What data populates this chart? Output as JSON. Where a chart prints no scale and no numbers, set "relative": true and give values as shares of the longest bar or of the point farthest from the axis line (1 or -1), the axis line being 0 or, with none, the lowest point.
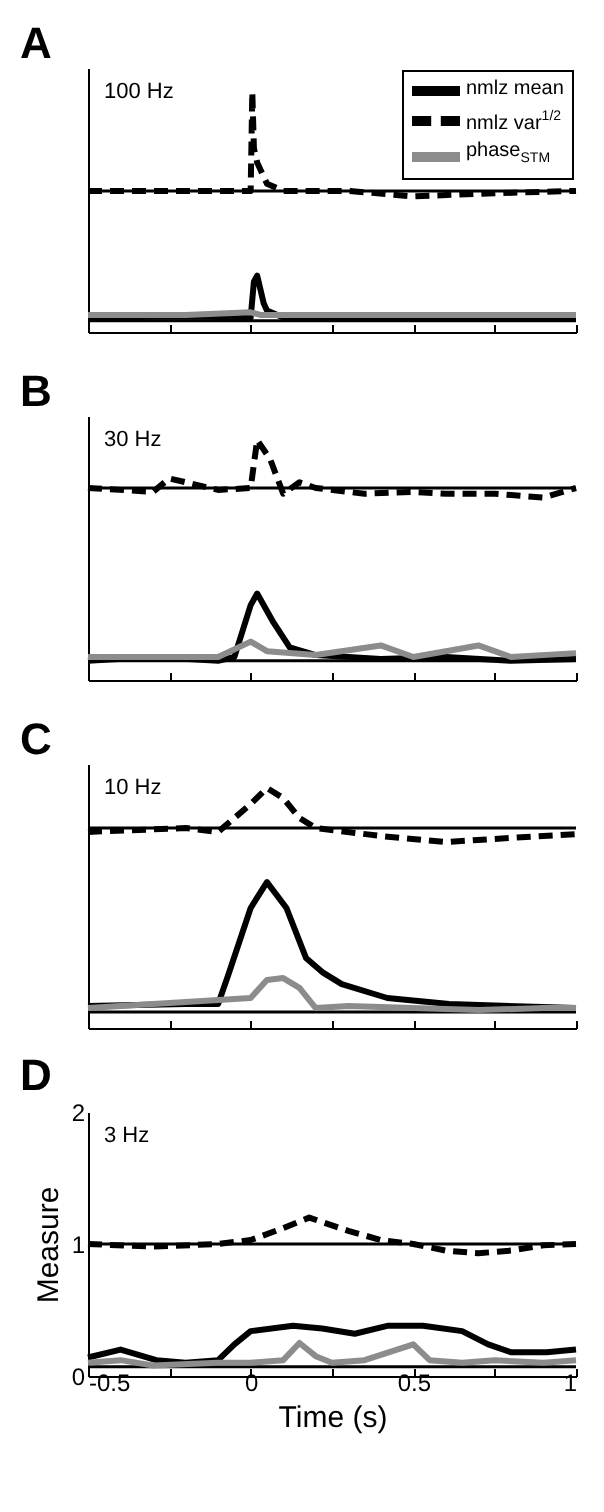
{
  "chart_data": [
    {
      "type": "line",
      "title": "A",
      "annotations": [
        "100 Hz"
      ],
      "relative": true,
      "xlim": [
        -0.5,
        1
      ],
      "xticks": [
        -0.5,
        {
          "value": -0.25,
          "label": null
        },
        0,
        {
          "value": 0.25,
          "label": null
        },
        0.5,
        {
          "value": 0.75,
          "label": null
        },
        1
      ],
      "tick_labels": false,
      "legend": "top right",
      "ref_lines": [
        {
          "axis": "y",
          "value": 0.588,
          "color": "#000000"
        },
        {
          "axis": "y",
          "value": 0.047,
          "color": "#000000"
        }
      ],
      "series": [
        {
          "name": "nmlz mean",
          "color": "#000000",
          "x": [
            -0.5,
            -0.2,
            0,
            0.01,
            0.02,
            0.04,
            0.05,
            0.1,
            0.5,
            1
          ],
          "values": [
            0.06,
            0.065,
            0.06,
            0.21,
            0.235,
            0.12,
            0.09,
            0.06,
            0.06,
            0.06
          ]
        },
        {
          "name": "nmlz var$^{1/2}$",
          "color": "#000000",
          "line_style": "dashed",
          "x": [
            -0.5,
            -0.2,
            0,
            0.005,
            0.01,
            0.02,
            0.05,
            0.1,
            0.3,
            0.5,
            0.7,
            1
          ],
          "values": [
            0.588,
            0.588,
            0.588,
            1,
            0.765,
            0.706,
            0.618,
            0.588,
            0.588,
            0.565,
            0.576,
            0.588
          ]
        },
        {
          "name": "phase$_{STM}$",
          "color": "#8c8c8c",
          "x": [
            -0.5,
            -0.2,
            0,
            0.03,
            0.3,
            0.6,
            1
          ],
          "values": [
            0.071,
            0.071,
            0.082,
            0.071,
            0.071,
            0.071,
            0.071
          ]
        }
      ]
    },
    {
      "type": "line",
      "title": "B",
      "annotations": [
        "30 Hz"
      ],
      "relative": true,
      "xlim": [
        -0.5,
        1
      ],
      "xticks": [
        -0.5,
        {
          "value": -0.25,
          "label": null
        },
        0,
        {
          "value": 0.25,
          "label": null
        },
        0.5,
        {
          "value": 0.75,
          "label": null
        },
        1
      ],
      "tick_labels": false,
      "ref_lines": [
        {
          "axis": "y",
          "value": 0.8,
          "color": "#000000"
        },
        {
          "axis": "y",
          "value": 0.08,
          "color": "#000000"
        }
      ],
      "series": [
        {
          "color": "#000000",
          "x": [
            -0.5,
            -0.3,
            -0.1,
            -0.05,
            0,
            0.02,
            0.07,
            0.12,
            0.2,
            0.4,
            0.6,
            0.8,
            1
          ],
          "values": [
            0.08,
            0.096,
            0.08,
            0.096,
            0.312,
            0.36,
            0.24,
            0.136,
            0.104,
            0.088,
            0.096,
            0.08,
            0.088
          ]
        },
        {
          "color": "#000000",
          "line_style": "dashed",
          "x": [
            -0.5,
            -0.3,
            -0.25,
            -0.1,
            0,
            0.02,
            0.06,
            0.1,
            0.15,
            0.2,
            0.35,
            0.5,
            0.6,
            0.75,
            0.9,
            1
          ],
          "values": [
            0.8,
            0.784,
            0.84,
            0.792,
            0.8,
            1,
            0.92,
            0.776,
            0.824,
            0.8,
            0.776,
            0.784,
            0.776,
            0.776,
            0.76,
            0.8
          ]
        },
        {
          "color": "#8c8c8c",
          "x": [
            -0.5,
            -0.1,
            0,
            0.05,
            0.2,
            0.4,
            0.5,
            0.7,
            0.8,
            1
          ],
          "values": [
            0.096,
            0.096,
            0.16,
            0.12,
            0.104,
            0.144,
            0.096,
            0.144,
            0.096,
            0.112
          ]
        }
      ]
    },
    {
      "type": "line",
      "title": "C",
      "annotations": [
        "10 Hz"
      ],
      "relative": true,
      "xlim": [
        -0.5,
        1
      ],
      "xticks": [
        -0.5,
        {
          "value": -0.25,
          "label": null
        },
        0,
        {
          "value": 0.25,
          "label": null
        },
        0.5,
        {
          "value": 0.75,
          "label": null
        },
        1
      ],
      "tick_labels": false,
      "ref_lines": [
        {
          "axis": "y",
          "value": 0.833,
          "color": "#000000"
        },
        {
          "axis": "y",
          "value": 0.067,
          "color": "#000000"
        }
      ],
      "series": [
        {
          "color": "#000000",
          "x": [
            -0.5,
            -0.2,
            -0.1,
            -0.07,
            0,
            0.05,
            0.11,
            0.17,
            0.22,
            0.28,
            0.42,
            0.61,
            1
          ],
          "values": [
            0.092,
            0.1,
            0.1,
            0.217,
            0.5,
            0.608,
            0.5,
            0.292,
            0.233,
            0.183,
            0.125,
            0.1,
            0.083
          ]
        },
        {
          "color": "#000000",
          "line_style": "dashed",
          "x": [
            -0.5,
            -0.2,
            -0.1,
            0,
            0.05,
            0.1,
            0.15,
            0.2,
            0.4,
            0.6,
            0.8,
            1
          ],
          "values": [
            0.817,
            0.833,
            0.817,
            0.933,
            1,
            0.958,
            0.875,
            0.833,
            0.8,
            0.775,
            0.792,
            0.808
          ]
        },
        {
          "color": "#8c8c8c",
          "x": [
            -0.5,
            0,
            0.05,
            0.1,
            0.15,
            0.2,
            0.3,
            0.5,
            0.7,
            0.9,
            1
          ],
          "values": [
            0.083,
            0.125,
            0.2,
            0.208,
            0.167,
            0.083,
            0.092,
            0.083,
            0.075,
            0.083,
            0.083
          ]
        }
      ]
    },
    {
      "type": "line",
      "title": "D",
      "annotations": [
        "3 Hz"
      ],
      "xlabel": "Time (s)",
      "ylabel": "Measure",
      "xlim": [
        -0.5,
        1
      ],
      "ylim": [
        0,
        2
      ],
      "xticks": [
        -0.5,
        {
          "value": -0.25,
          "label": null
        },
        0,
        {
          "value": 0.25,
          "label": null
        },
        0.5,
        {
          "value": 0.75,
          "label": null
        },
        1
      ],
      "yticks": [
        0,
        1,
        2
      ],
      "ref_lines": [
        {
          "axis": "y",
          "value": 1,
          "color": "#000000"
        },
        {
          "axis": "y",
          "value": 0.07,
          "color": "#000000"
        }
      ],
      "series": [
        {
          "color": "#000000",
          "x": [
            -0.5,
            -0.4,
            -0.29,
            -0.2,
            -0.1,
            -0.05,
            0,
            0.13,
            0.22,
            0.32,
            0.42,
            0.53,
            0.65,
            0.73,
            0.8,
            0.91,
            1
          ],
          "values": [
            0.14,
            0.2,
            0.12,
            0.1,
            0.12,
            0.24,
            0.34,
            0.38,
            0.36,
            0.32,
            0.38,
            0.38,
            0.34,
            0.24,
            0.18,
            0.18,
            0.2
          ]
        },
        {
          "color": "#000000",
          "line_style": "dashed",
          "x": [
            -0.5,
            -0.3,
            -0.1,
            0,
            0.1,
            0.18,
            0.3,
            0.4,
            0.5,
            0.6,
            0.7,
            0.8,
            0.9,
            1
          ],
          "values": [
            1.0,
            0.98,
            1.0,
            1.03,
            1.12,
            1.2,
            1.1,
            1.03,
            1.0,
            0.95,
            0.93,
            0.95,
            0.99,
            1.0
          ]
        },
        {
          "color": "#8c8c8c",
          "x": [
            -0.5,
            -0.4,
            -0.3,
            -0.1,
            0,
            0.1,
            0.15,
            0.2,
            0.25,
            0.35,
            0.45,
            0.5,
            0.55,
            0.65,
            0.75,
            0.9,
            1
          ],
          "values": [
            0.1,
            0.12,
            0.08,
            0.1,
            0.1,
            0.12,
            0.25,
            0.15,
            0.1,
            0.12,
            0.2,
            0.24,
            0.12,
            0.1,
            0.12,
            0.1,
            0.12
          ]
        }
      ]
    }
  ]
}
